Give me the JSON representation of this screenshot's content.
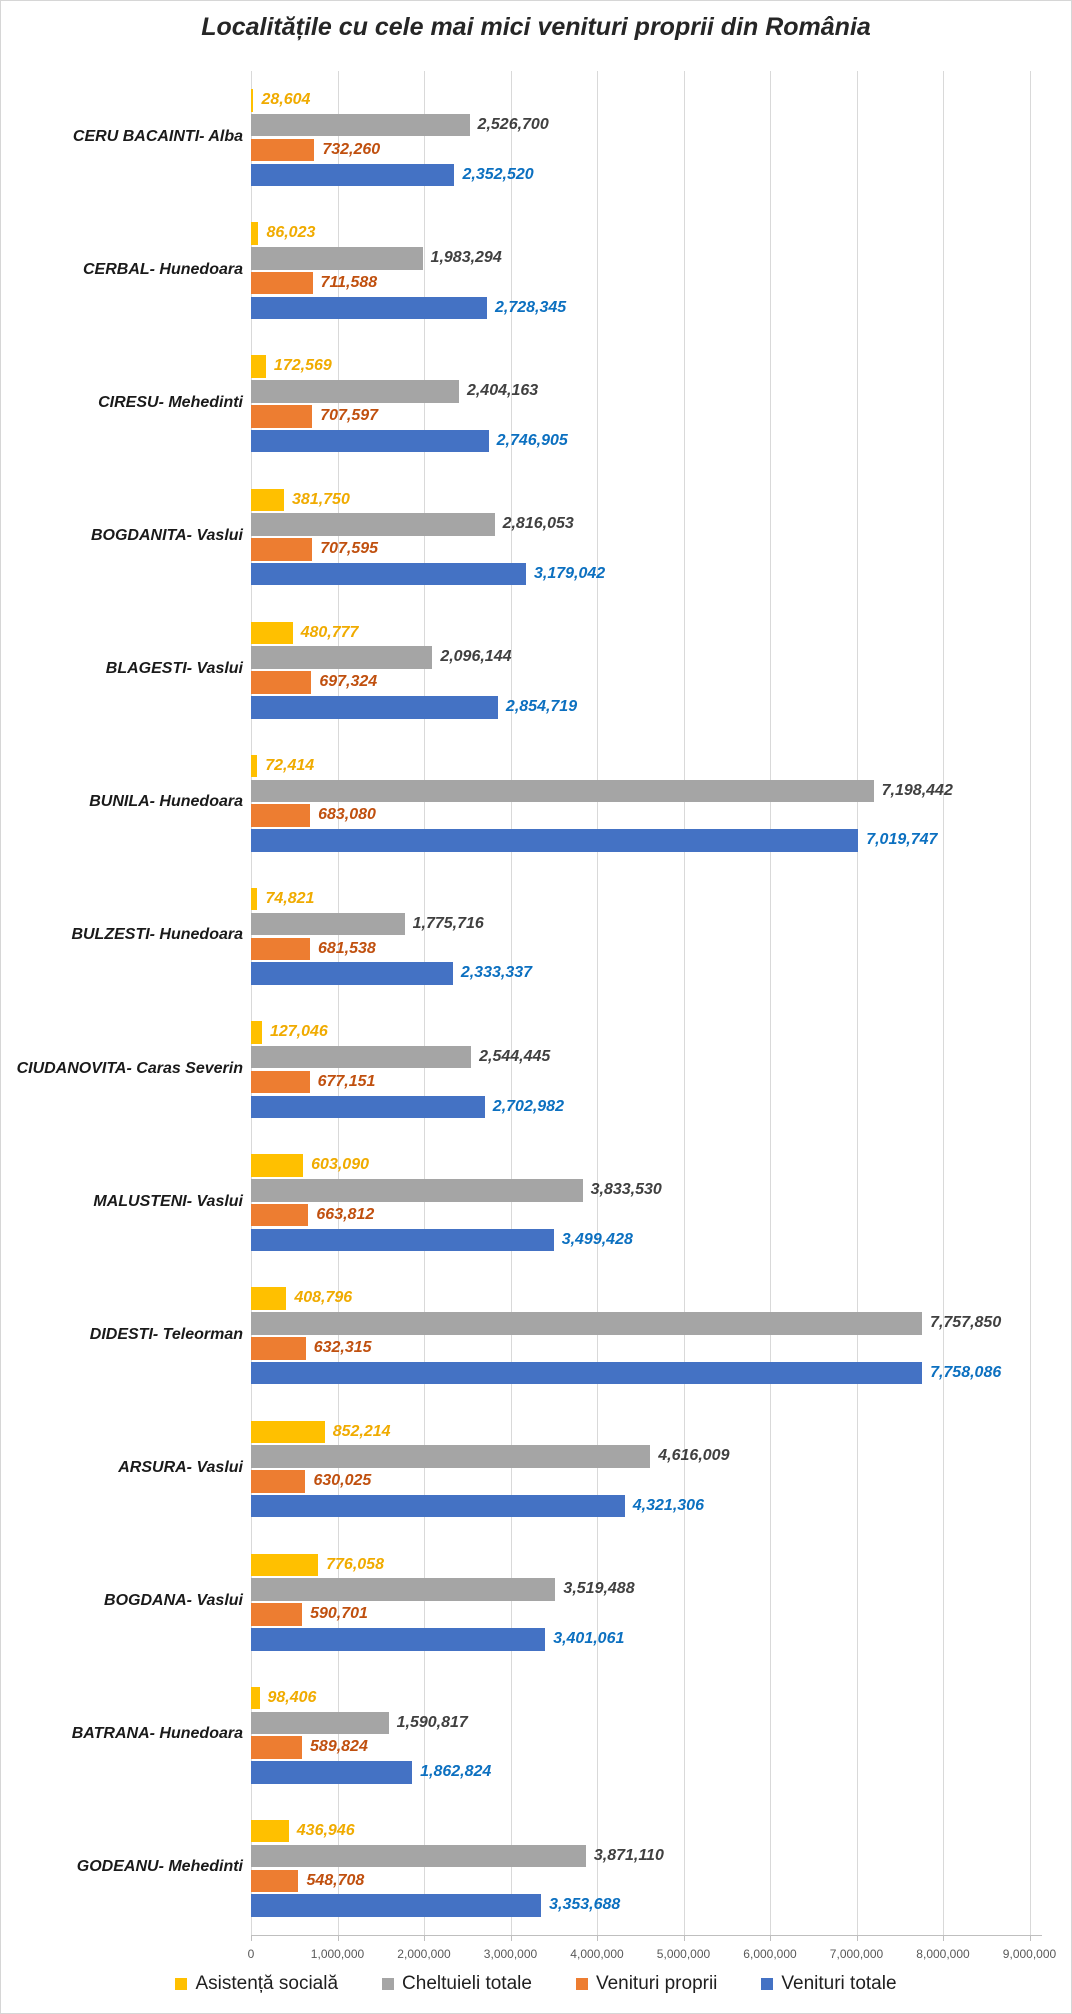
{
  "title": "Localitățile cu cele mai mici venituri proprii din România",
  "chart_data": {
    "type": "bar",
    "orientation": "horizontal",
    "title": "Localitățile cu cele mai mici venituri proprii din România",
    "categories": [
      "CERU BACAINTI- Alba",
      "CERBAL- Hunedoara",
      "CIRESU- Mehedinti",
      "BOGDANITA- Vaslui",
      "BLAGESTI- Vaslui",
      "BUNILA- Hunedoara",
      "BULZESTI- Hunedoara",
      "CIUDANOVITA- Caras Severin",
      "MALUSTENI- Vaslui",
      "DIDESTI- Teleorman",
      "ARSURA- Vaslui",
      "BOGDANA- Vaslui",
      "BATRANA- Hunedoara",
      "GODEANU- Mehedinti"
    ],
    "series": [
      {
        "name": "Asistență socială",
        "color": "#FFC000",
        "label_color": "#F0AB00",
        "values": [
          28604,
          86023,
          172569,
          381750,
          480777,
          72414,
          74821,
          127046,
          603090,
          408796,
          852214,
          776058,
          98406,
          436946
        ]
      },
      {
        "name": "Cheltuieli totale",
        "color": "#A5A5A5",
        "label_color": "#404040",
        "values": [
          2526700,
          1983294,
          2404163,
          2816053,
          2096144,
          7198442,
          1775716,
          2544445,
          3833530,
          7757850,
          4616009,
          3519488,
          1590817,
          3871110
        ]
      },
      {
        "name": "Venituri proprii",
        "color": "#ED7D31",
        "label_color": "#C0500F",
        "values": [
          732260,
          711588,
          707597,
          707595,
          697324,
          683080,
          681538,
          677151,
          663812,
          632315,
          630025,
          590701,
          589824,
          548708
        ]
      },
      {
        "name": "Venituri totale",
        "color": "#4472C4",
        "label_color": "#0C70C0",
        "values": [
          2352520,
          2728345,
          2746905,
          3179042,
          2854719,
          7019747,
          2333337,
          2702982,
          3499428,
          7758086,
          4321306,
          3401061,
          1862824,
          3353688
        ]
      }
    ],
    "xlim": [
      0,
      9000000
    ],
    "x_tick_interval": 1000000,
    "x_tick_labels": [
      "0",
      "1,000,000",
      "2,000,000",
      "3,000,000",
      "4,000,000",
      "5,000,000",
      "6,000,000",
      "7,000,000",
      "8,000,000",
      "9,000,000"
    ],
    "grid": true,
    "legend_position": "bottom",
    "value_labels": "outside-end"
  }
}
